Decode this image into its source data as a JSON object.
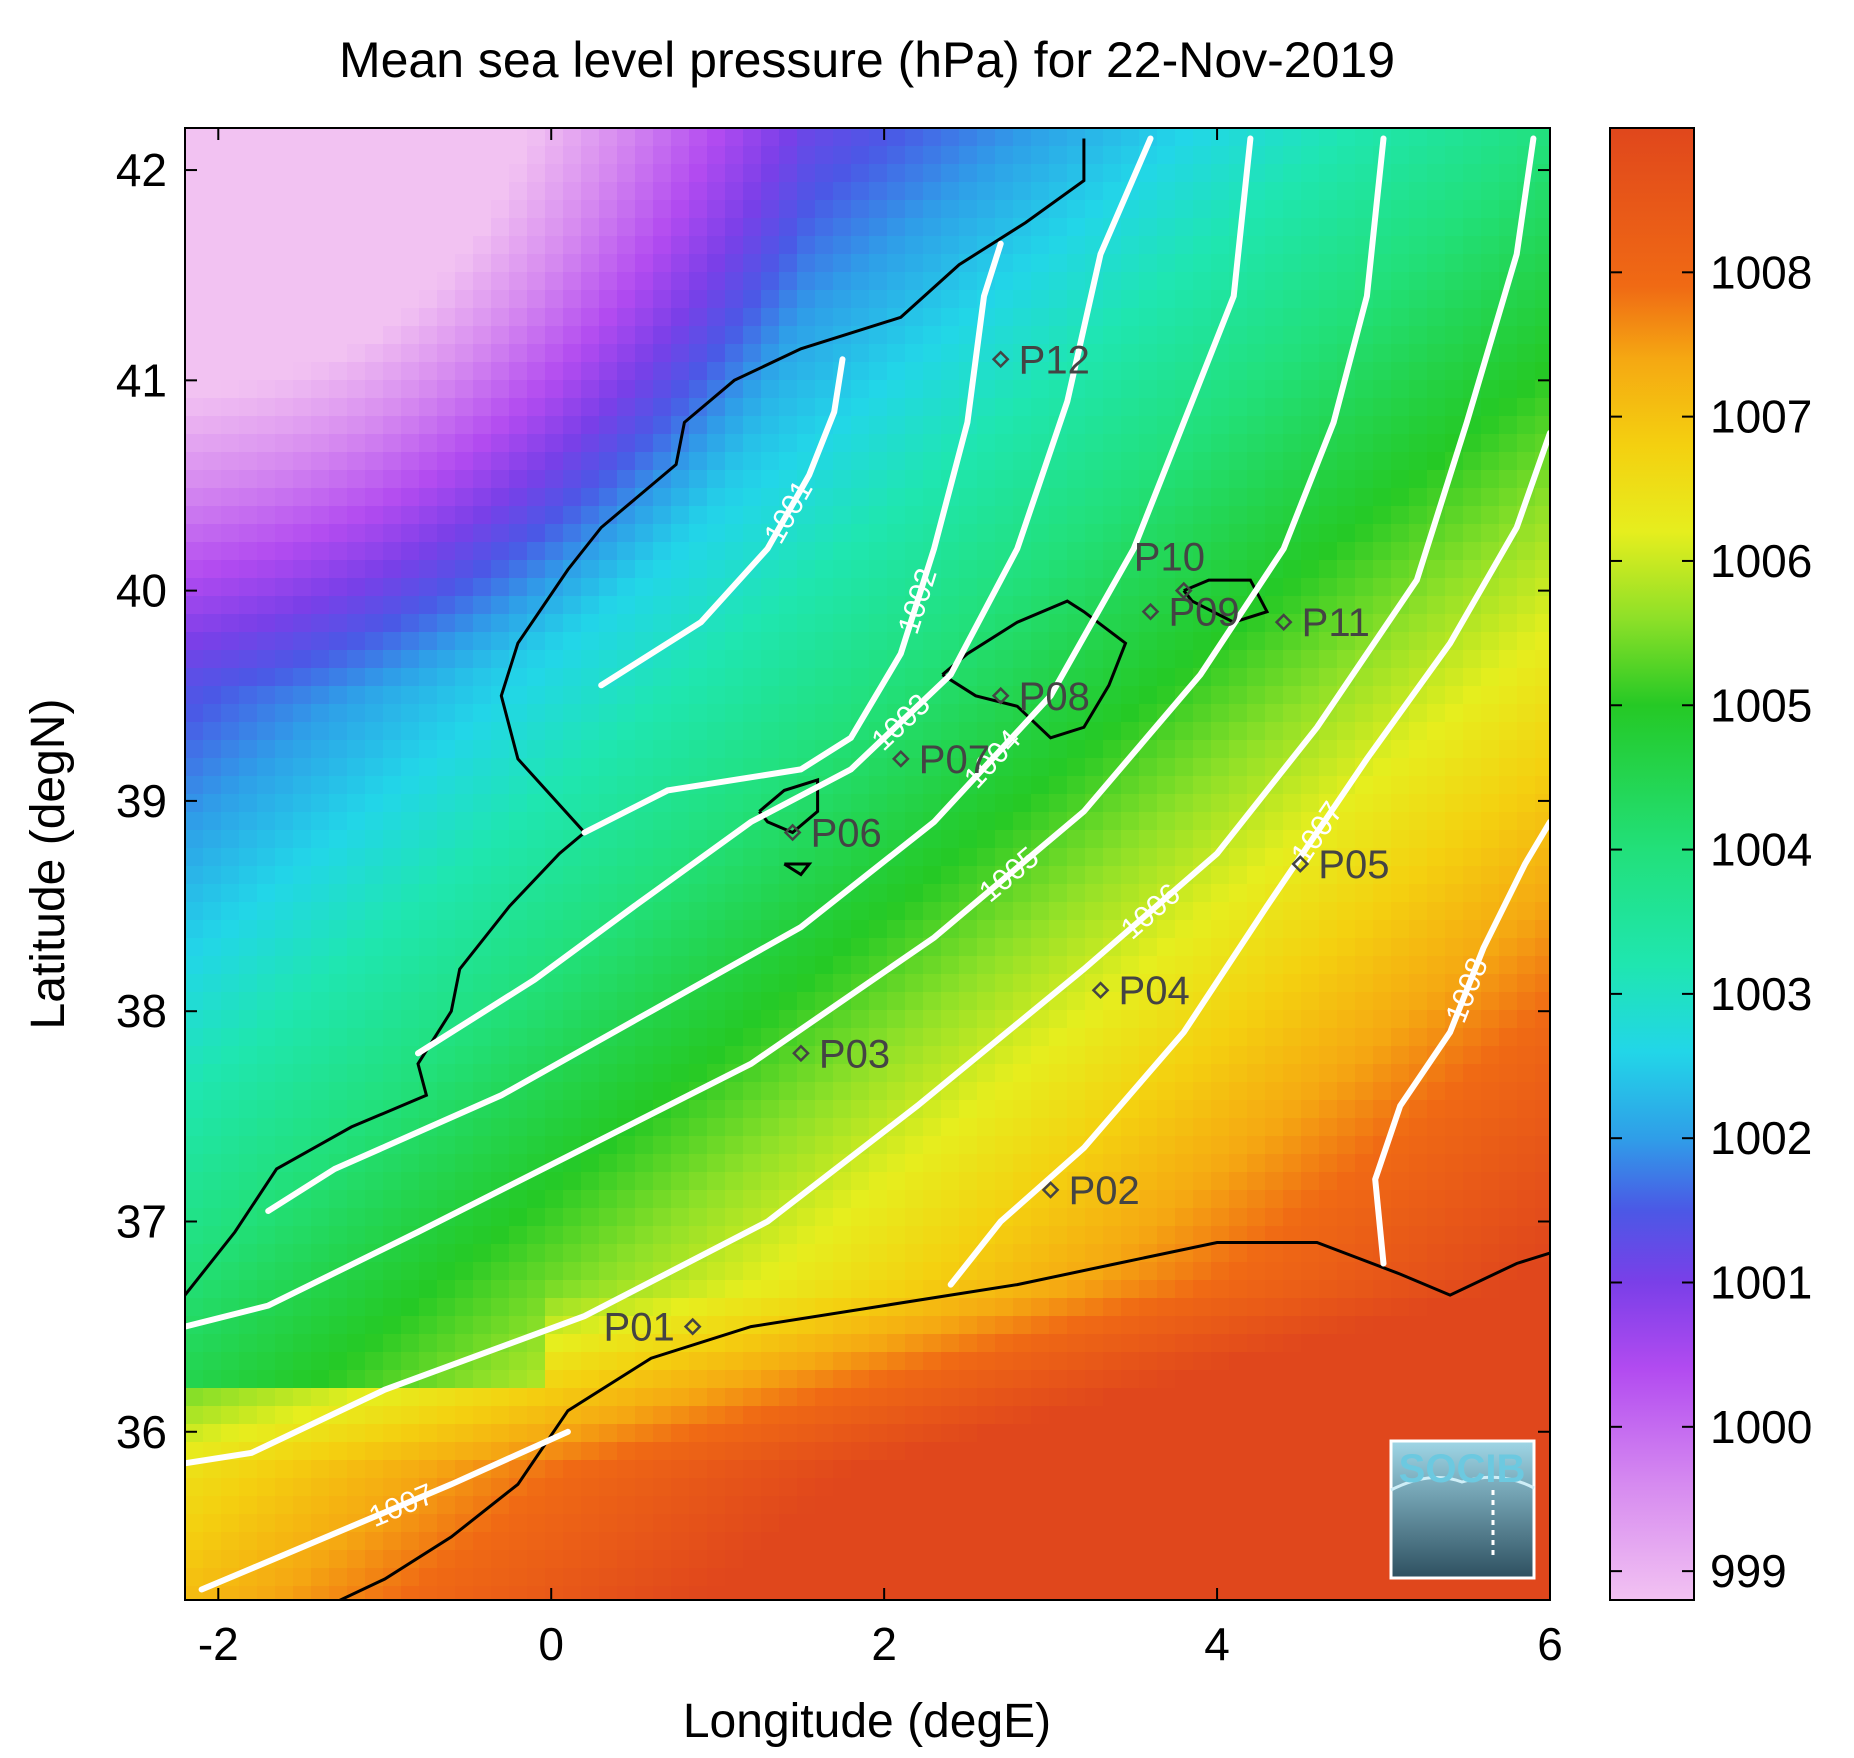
{
  "title": "Mean sea level pressure (hPa) for 22-Nov-2019",
  "xlabel": "Longitude (degE)",
  "ylabel": "Latitude (degN)",
  "colorbar": {
    "min": 998.8,
    "max": 1009.0,
    "ticks": [
      999,
      1000,
      1001,
      1002,
      1003,
      1004,
      1005,
      1006,
      1007,
      1008
    ],
    "stops": [
      {
        "v": 998.8,
        "c": "#f2c2f2"
      },
      {
        "v": 999.6,
        "c": "#d68af0"
      },
      {
        "v": 1000.4,
        "c": "#b24bf0"
      },
      {
        "v": 1001.0,
        "c": "#7a3fe8"
      },
      {
        "v": 1001.5,
        "c": "#4b58e6"
      },
      {
        "v": 1002.0,
        "c": "#2f9ee8"
      },
      {
        "v": 1002.6,
        "c": "#22d6e8"
      },
      {
        "v": 1003.2,
        "c": "#1fe6b0"
      },
      {
        "v": 1004.0,
        "c": "#22e07a"
      },
      {
        "v": 1005.0,
        "c": "#25c925"
      },
      {
        "v": 1005.6,
        "c": "#8ee028"
      },
      {
        "v": 1006.2,
        "c": "#e6ee1e"
      },
      {
        "v": 1006.8,
        "c": "#f4d010"
      },
      {
        "v": 1007.4,
        "c": "#f5a812"
      },
      {
        "v": 1007.9,
        "c": "#f06a14"
      },
      {
        "v": 1009.0,
        "c": "#e0471c"
      }
    ]
  },
  "logo_text": "SOCIB",
  "chart_data": {
    "type": "heatmap",
    "title": "Mean sea level pressure (hPa) for 22-Nov-2019",
    "xlabel": "Longitude (degE)",
    "ylabel": "Latitude (degN)",
    "xlim": [
      -2.2,
      6.0
    ],
    "ylim": [
      35.2,
      42.2
    ],
    "x_ticks": [
      -2,
      0,
      2,
      4,
      6
    ],
    "y_ticks": [
      36,
      37,
      38,
      39,
      40,
      41,
      42
    ],
    "contours": [
      {
        "level": 1001,
        "label": "1001",
        "points": [
          [
            0.3,
            39.55
          ],
          [
            0.9,
            39.85
          ],
          [
            1.3,
            40.2
          ],
          [
            1.55,
            40.55
          ],
          [
            1.7,
            40.85
          ],
          [
            1.75,
            41.1
          ]
        ]
      },
      {
        "level": 1002,
        "label": "1002",
        "points": [
          [
            0.2,
            38.85
          ],
          [
            0.7,
            39.05
          ],
          [
            1.5,
            39.15
          ],
          [
            1.8,
            39.3
          ],
          [
            2.1,
            39.7
          ],
          [
            2.3,
            40.2
          ],
          [
            2.5,
            40.8
          ],
          [
            2.6,
            41.4
          ],
          [
            2.7,
            41.65
          ]
        ]
      },
      {
        "level": 1003,
        "label": "1003",
        "points": [
          [
            -0.8,
            37.8
          ],
          [
            -0.1,
            38.15
          ],
          [
            0.5,
            38.5
          ],
          [
            1.2,
            38.9
          ],
          [
            1.8,
            39.15
          ],
          [
            2.4,
            39.6
          ],
          [
            2.8,
            40.2
          ],
          [
            3.1,
            40.9
          ],
          [
            3.3,
            41.6
          ],
          [
            3.6,
            42.15
          ]
        ]
      },
      {
        "level": 1004,
        "label": "1004",
        "points": [
          [
            -1.7,
            37.05
          ],
          [
            -1.3,
            37.25
          ],
          [
            -0.3,
            37.6
          ],
          [
            0.6,
            38.0
          ],
          [
            1.5,
            38.4
          ],
          [
            2.3,
            38.9
          ],
          [
            3.0,
            39.5
          ],
          [
            3.5,
            40.2
          ],
          [
            3.8,
            40.8
          ],
          [
            4.1,
            41.4
          ],
          [
            4.2,
            42.15
          ]
        ]
      },
      {
        "level": 1005,
        "label": "1005",
        "points": [
          [
            -2.2,
            36.5
          ],
          [
            -1.7,
            36.6
          ],
          [
            -0.8,
            36.95
          ],
          [
            0.2,
            37.35
          ],
          [
            1.2,
            37.75
          ],
          [
            2.3,
            38.35
          ],
          [
            3.2,
            38.95
          ],
          [
            3.9,
            39.6
          ],
          [
            4.4,
            40.2
          ],
          [
            4.7,
            40.8
          ],
          [
            4.9,
            41.4
          ],
          [
            5.0,
            42.15
          ]
        ]
      },
      {
        "level": 1006,
        "label": "1006",
        "points": [
          [
            -2.2,
            35.85
          ],
          [
            -1.8,
            35.9
          ],
          [
            -1.0,
            36.2
          ],
          [
            0.2,
            36.55
          ],
          [
            1.3,
            37.0
          ],
          [
            2.2,
            37.55
          ],
          [
            3.2,
            38.2
          ],
          [
            4.0,
            38.75
          ],
          [
            4.6,
            39.35
          ],
          [
            5.2,
            40.05
          ],
          [
            5.5,
            40.8
          ],
          [
            5.8,
            41.6
          ],
          [
            5.9,
            42.15
          ]
        ]
      },
      {
        "level": 1007,
        "label": "1007",
        "points": [
          [
            -2.1,
            35.25
          ],
          [
            -1.8,
            35.35
          ],
          [
            -1.2,
            35.55
          ],
          [
            -0.6,
            35.75
          ],
          [
            0.1,
            36.0
          ]
        ]
      },
      {
        "level": 1007,
        "label": "1007",
        "points": [
          [
            2.4,
            36.7
          ],
          [
            2.7,
            37.0
          ],
          [
            3.2,
            37.35
          ],
          [
            3.8,
            37.9
          ],
          [
            4.3,
            38.5
          ],
          [
            4.9,
            39.2
          ],
          [
            5.4,
            39.75
          ],
          [
            5.8,
            40.3
          ],
          [
            6.0,
            40.75
          ]
        ]
      },
      {
        "level": 1008,
        "label": "1008",
        "points": [
          [
            5.0,
            36.8
          ],
          [
            4.95,
            37.2
          ],
          [
            5.1,
            37.55
          ],
          [
            5.4,
            37.9
          ],
          [
            5.6,
            38.3
          ],
          [
            5.85,
            38.7
          ],
          [
            6.0,
            38.9
          ]
        ]
      }
    ],
    "stations": [
      {
        "name": "P01",
        "lon": 0.85,
        "lat": 36.5
      },
      {
        "name": "P02",
        "lon": 3.0,
        "lat": 37.15
      },
      {
        "name": "P03",
        "lon": 1.5,
        "lat": 37.8
      },
      {
        "name": "P04",
        "lon": 3.3,
        "lat": 38.1
      },
      {
        "name": "P05",
        "lon": 4.5,
        "lat": 38.7
      },
      {
        "name": "P06",
        "lon": 1.45,
        "lat": 38.85
      },
      {
        "name": "P07",
        "lon": 2.1,
        "lat": 39.2
      },
      {
        "name": "P08",
        "lon": 2.7,
        "lat": 39.5
      },
      {
        "name": "P09",
        "lon": 3.6,
        "lat": 39.9
      },
      {
        "name": "P10",
        "lon": 3.8,
        "lat": 40.0
      },
      {
        "name": "P11",
        "lon": 4.4,
        "lat": 39.85
      },
      {
        "name": "P12",
        "lon": 2.7,
        "lat": 41.1
      }
    ],
    "coastlines": [
      {
        "name": "iberia",
        "points": [
          [
            -2.2,
            36.65
          ],
          [
            -1.9,
            36.95
          ],
          [
            -1.65,
            37.25
          ],
          [
            -1.2,
            37.45
          ],
          [
            -0.75,
            37.6
          ],
          [
            -0.8,
            37.75
          ],
          [
            -0.6,
            38.0
          ],
          [
            -0.55,
            38.2
          ],
          [
            -0.25,
            38.5
          ],
          [
            0.05,
            38.75
          ],
          [
            0.2,
            38.85
          ],
          [
            -0.2,
            39.2
          ],
          [
            -0.3,
            39.5
          ],
          [
            -0.2,
            39.75
          ],
          [
            0.1,
            40.1
          ],
          [
            0.3,
            40.3
          ],
          [
            0.75,
            40.6
          ],
          [
            0.8,
            40.8
          ],
          [
            1.1,
            41.0
          ],
          [
            1.5,
            41.15
          ],
          [
            2.1,
            41.3
          ],
          [
            2.45,
            41.55
          ],
          [
            2.85,
            41.75
          ],
          [
            3.2,
            41.95
          ],
          [
            3.2,
            42.15
          ]
        ]
      },
      {
        "name": "mallorca",
        "points": [
          [
            2.35,
            39.6
          ],
          [
            2.5,
            39.7
          ],
          [
            2.8,
            39.85
          ],
          [
            3.1,
            39.95
          ],
          [
            3.2,
            39.9
          ],
          [
            3.45,
            39.75
          ],
          [
            3.35,
            39.55
          ],
          [
            3.2,
            39.35
          ],
          [
            3.0,
            39.3
          ],
          [
            2.8,
            39.45
          ],
          [
            2.55,
            39.5
          ],
          [
            2.35,
            39.6
          ]
        ]
      },
      {
        "name": "menorca",
        "points": [
          [
            3.8,
            40.0
          ],
          [
            3.95,
            40.05
          ],
          [
            4.2,
            40.05
          ],
          [
            4.3,
            39.9
          ],
          [
            4.1,
            39.85
          ],
          [
            3.85,
            39.95
          ],
          [
            3.8,
            40.0
          ]
        ]
      },
      {
        "name": "ibiza",
        "points": [
          [
            1.25,
            38.95
          ],
          [
            1.4,
            39.05
          ],
          [
            1.6,
            39.1
          ],
          [
            1.6,
            38.95
          ],
          [
            1.45,
            38.85
          ],
          [
            1.3,
            38.9
          ],
          [
            1.25,
            38.95
          ]
        ]
      },
      {
        "name": "formentera",
        "points": [
          [
            1.4,
            38.7
          ],
          [
            1.55,
            38.7
          ],
          [
            1.5,
            38.65
          ],
          [
            1.4,
            38.7
          ]
        ]
      },
      {
        "name": "africa",
        "points": [
          [
            -1.4,
            35.15
          ],
          [
            -1.0,
            35.3
          ],
          [
            -0.6,
            35.5
          ],
          [
            -0.2,
            35.75
          ],
          [
            0.1,
            36.1
          ],
          [
            0.6,
            36.35
          ],
          [
            1.2,
            36.5
          ],
          [
            2.0,
            36.6
          ],
          [
            2.8,
            36.7
          ],
          [
            3.4,
            36.8
          ],
          [
            4.0,
            36.9
          ],
          [
            4.6,
            36.9
          ],
          [
            5.1,
            36.75
          ],
          [
            5.4,
            36.65
          ],
          [
            5.8,
            36.8
          ],
          [
            6.0,
            36.85
          ]
        ]
      }
    ]
  }
}
